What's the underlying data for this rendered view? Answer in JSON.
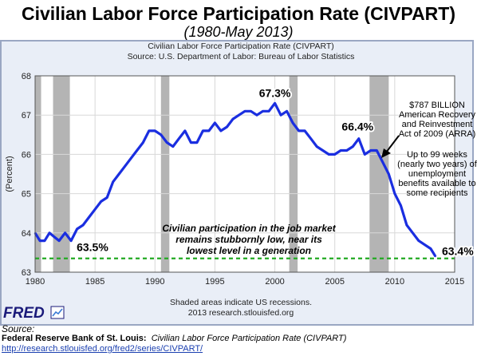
{
  "header": {
    "title": "Civilian Labor Force Participation Rate (CIVPART)",
    "subtitle": "(1980-May 2013)"
  },
  "fred_logo_text": "FRED",
  "source": {
    "label": "Source:",
    "publisher": "Federal Reserve Bank of St. Louis:",
    "series_title": "Civilian Labor Force Participation Rate (CIVPART)",
    "url": "http://research.stlouisfed.org/fred2/series/CIVPART/"
  },
  "colors": {
    "line": "#1a2ee0",
    "recession": "#b4b4b4",
    "dashed": "#22aa22",
    "plot_bg": "#ffffff",
    "frame_bg": "#e9eef7"
  },
  "chart_data": {
    "type": "line",
    "title": "Civilian Labor Force Participation Rate (CIVPART)",
    "source_line": "Source: U.S. Department of Labor: Bureau of Labor Statistics",
    "ylabel": "(Percent)",
    "xlabel": "",
    "xlim": [
      1980,
      2015
    ],
    "ylim": [
      63,
      68
    ],
    "x_ticks": [
      "1980",
      "1985",
      "1990",
      "1995",
      "2000",
      "2005",
      "2010",
      "2015"
    ],
    "y_ticks": [
      "63",
      "64",
      "65",
      "66",
      "67",
      "68"
    ],
    "grid": true,
    "recessions": [
      [
        1980.0,
        1980.5
      ],
      [
        1981.5,
        1982.9
      ],
      [
        1990.5,
        1991.2
      ],
      [
        2001.2,
        2001.9
      ],
      [
        2007.9,
        2009.5
      ]
    ],
    "series": [
      {
        "values": [
          [
            1980.0,
            64.0
          ],
          [
            1980.4,
            63.8
          ],
          [
            1980.8,
            63.8
          ],
          [
            1981.2,
            64.0
          ],
          [
            1981.6,
            63.9
          ],
          [
            1982.0,
            63.8
          ],
          [
            1982.5,
            64.0
          ],
          [
            1983.0,
            63.8
          ],
          [
            1983.5,
            64.1
          ],
          [
            1984.0,
            64.2
          ],
          [
            1984.5,
            64.4
          ],
          [
            1985.0,
            64.6
          ],
          [
            1985.5,
            64.8
          ],
          [
            1986.0,
            64.9
          ],
          [
            1986.5,
            65.3
          ],
          [
            1987.0,
            65.5
          ],
          [
            1987.5,
            65.7
          ],
          [
            1988.0,
            65.9
          ],
          [
            1988.5,
            66.1
          ],
          [
            1989.0,
            66.3
          ],
          [
            1989.5,
            66.6
          ],
          [
            1990.0,
            66.6
          ],
          [
            1990.5,
            66.5
          ],
          [
            1991.0,
            66.3
          ],
          [
            1991.5,
            66.2
          ],
          [
            1992.0,
            66.4
          ],
          [
            1992.5,
            66.6
          ],
          [
            1993.0,
            66.3
          ],
          [
            1993.5,
            66.3
          ],
          [
            1994.0,
            66.6
          ],
          [
            1994.5,
            66.6
          ],
          [
            1995.0,
            66.8
          ],
          [
            1995.5,
            66.6
          ],
          [
            1996.0,
            66.7
          ],
          [
            1996.5,
            66.9
          ],
          [
            1997.0,
            67.0
          ],
          [
            1997.5,
            67.1
          ],
          [
            1998.0,
            67.1
          ],
          [
            1998.5,
            67.0
          ],
          [
            1999.0,
            67.1
          ],
          [
            1999.5,
            67.1
          ],
          [
            2000.0,
            67.3
          ],
          [
            2000.5,
            67.0
          ],
          [
            2001.0,
            67.1
          ],
          [
            2001.5,
            66.8
          ],
          [
            2002.0,
            66.6
          ],
          [
            2002.5,
            66.6
          ],
          [
            2003.0,
            66.4
          ],
          [
            2003.5,
            66.2
          ],
          [
            2004.0,
            66.1
          ],
          [
            2004.5,
            66.0
          ],
          [
            2005.0,
            66.0
          ],
          [
            2005.5,
            66.1
          ],
          [
            2006.0,
            66.1
          ],
          [
            2006.5,
            66.2
          ],
          [
            2007.0,
            66.4
          ],
          [
            2007.5,
            66.0
          ],
          [
            2008.0,
            66.1
          ],
          [
            2008.5,
            66.1
          ],
          [
            2009.0,
            65.8
          ],
          [
            2009.5,
            65.5
          ],
          [
            2010.0,
            65.0
          ],
          [
            2010.5,
            64.7
          ],
          [
            2011.0,
            64.2
          ],
          [
            2011.5,
            64.0
          ],
          [
            2012.0,
            63.8
          ],
          [
            2012.5,
            63.7
          ],
          [
            2013.0,
            63.6
          ],
          [
            2013.4,
            63.4
          ]
        ]
      }
    ],
    "reference_line": {
      "y": 63.35,
      "style": "dashed"
    },
    "annotations": [
      {
        "x": 2000.0,
        "y": 67.3,
        "text": "67.3%"
      },
      {
        "x": 2006.9,
        "y": 66.4,
        "text": "66.4%"
      },
      {
        "x": 1983.2,
        "y": 63.5,
        "text": "63.5%"
      },
      {
        "x": 2013.4,
        "y": 63.4,
        "text": "63.4%"
      }
    ],
    "callouts": {
      "arra": [
        "$787 BILLION",
        "American Recovery",
        "and Reinvestment",
        "Act of 2009 (ARRA)"
      ],
      "weeks": [
        "Up to 99 weeks",
        "(nearly two years) of",
        "unemployment",
        "benefits available to",
        "some recipients"
      ],
      "middle": [
        "Civilian participation in the job market",
        "remains stubbornly low, near its",
        "lowest level in a generation"
      ]
    },
    "footnotes": [
      "Shaded areas indicate US recessions.",
      "2013 research.stlouisfed.org"
    ]
  }
}
